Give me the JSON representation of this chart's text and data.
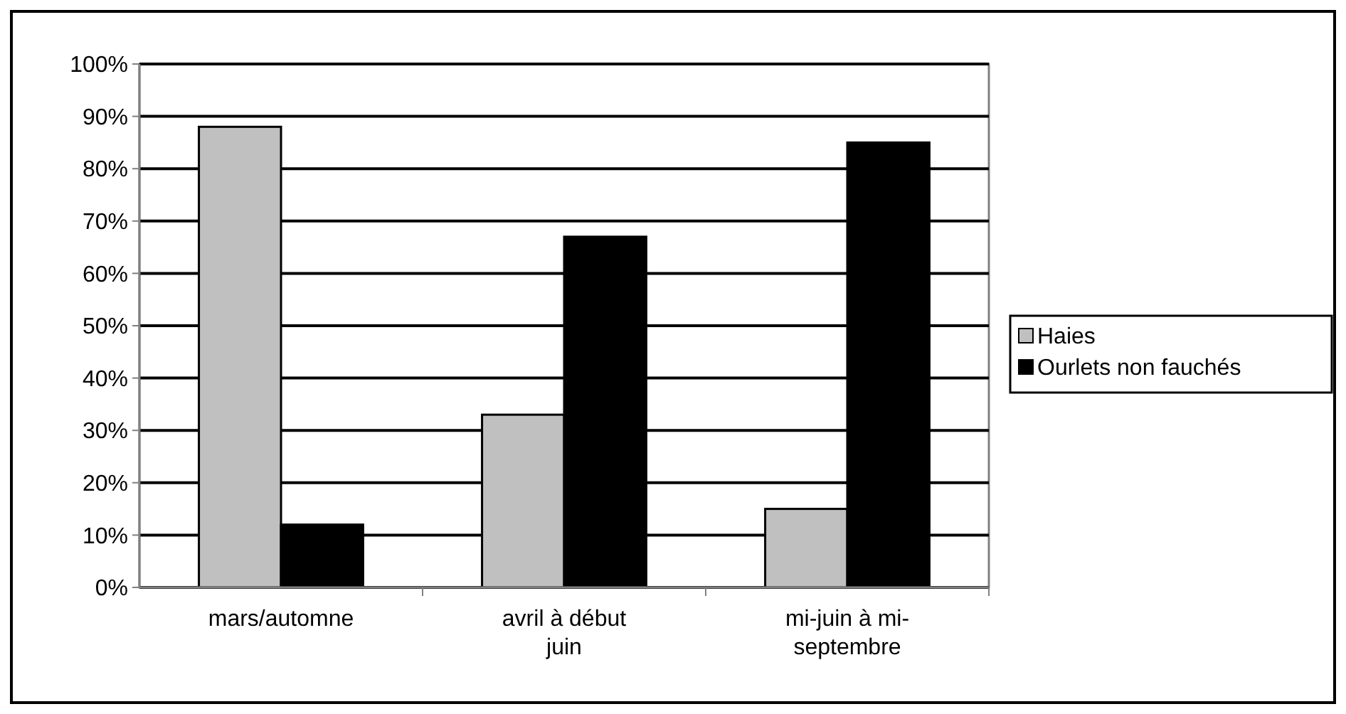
{
  "chart_data": {
    "type": "bar",
    "categories": [
      "mars/automne",
      "avril à début juin",
      "mi-juin à mi-septembre"
    ],
    "series": [
      {
        "name": "Haies",
        "color": "#c0c0c0",
        "values": [
          88,
          33,
          15
        ]
      },
      {
        "name": "Ourlets non fauchés",
        "color": "#000000",
        "values": [
          12,
          67,
          85
        ]
      }
    ],
    "ylim": [
      0,
      100
    ],
    "yticks": [
      {
        "value": 0,
        "label": "0%"
      },
      {
        "value": 10,
        "label": "10%"
      },
      {
        "value": 20,
        "label": "20%"
      },
      {
        "value": 30,
        "label": "30%"
      },
      {
        "value": 40,
        "label": "40%"
      },
      {
        "value": 50,
        "label": "50%"
      },
      {
        "value": 60,
        "label": "60%"
      },
      {
        "value": 70,
        "label": "70%"
      },
      {
        "value": 80,
        "label": "80%"
      },
      {
        "value": 90,
        "label": "90%"
      },
      {
        "value": 100,
        "label": "100%"
      }
    ],
    "grid": "y",
    "legend": "right"
  }
}
